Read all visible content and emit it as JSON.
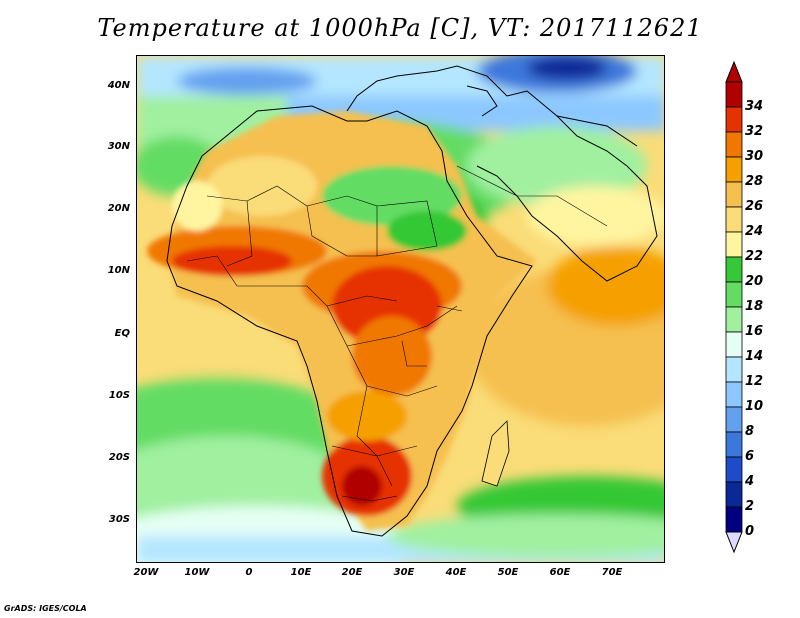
{
  "title": "Temperature at 1000hPa [C], VT: 2017112621",
  "footer": "GrADS: IGES/COLA",
  "map": {
    "region": "Africa and Indian Ocean",
    "lon_range": [
      -22,
      80
    ],
    "lat_range": [
      -36,
      45
    ],
    "lat_labels": [
      "40N",
      "30N",
      "20N",
      "10N",
      "EQ",
      "10S",
      "20S",
      "30S"
    ],
    "lon_labels": [
      "20W",
      "10W",
      "0",
      "10E",
      "20E",
      "30E",
      "40E",
      "50E",
      "60E",
      "70E"
    ]
  },
  "colorbar": {
    "labels": [
      "34",
      "32",
      "30",
      "28",
      "26",
      "24",
      "22",
      "20",
      "18",
      "16",
      "14",
      "12",
      "10",
      "8",
      "6",
      "4",
      "2",
      "0"
    ],
    "colors": [
      "#b00000",
      "#e63200",
      "#f07800",
      "#f5a000",
      "#f5c050",
      "#fadc78",
      "#fff5a0",
      "#36c836",
      "#64dc64",
      "#a0f0a0",
      "#e6fff5",
      "#b4e6ff",
      "#8cc8ff",
      "#64a0f0",
      "#3c78dc",
      "#1e4bc8",
      "#0a2896",
      "#000080"
    ]
  }
}
